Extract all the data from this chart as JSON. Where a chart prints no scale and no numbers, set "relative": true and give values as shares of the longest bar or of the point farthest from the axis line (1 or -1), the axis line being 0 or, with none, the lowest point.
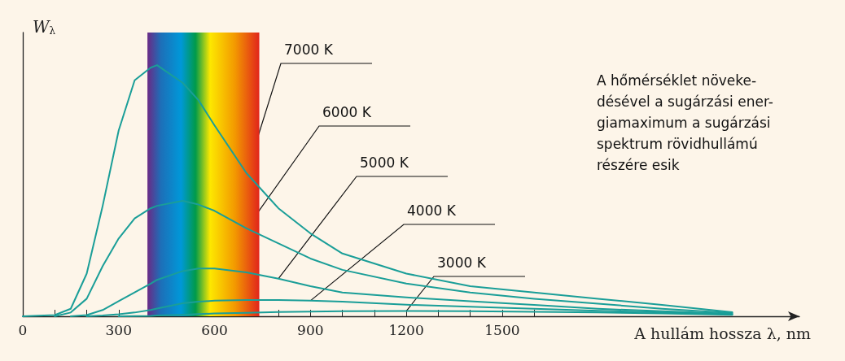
{
  "chart_data": {
    "type": "line",
    "relative": true,
    "xlabel": "A hullám hossza λ, nm",
    "ylabel": "W$_{λ}$",
    "x": [
      0,
      100,
      150,
      200,
      250,
      300,
      350,
      400,
      420,
      500,
      550,
      600,
      700,
      800,
      900,
      1000,
      1200,
      1400,
      1600,
      1800,
      2000,
      2220
    ],
    "xlim": [
      0,
      2430
    ],
    "xticks": [
      0,
      {
        "value": 100,
        "label": null
      },
      {
        "value": 200,
        "label": null
      },
      300,
      {
        "value": 400,
        "label": null
      },
      {
        "value": 500,
        "label": null
      },
      600,
      {
        "value": 700,
        "label": null
      },
      {
        "value": 800,
        "label": null
      },
      900,
      {
        "value": 1000,
        "label": null
      },
      {
        "value": 1100,
        "label": null
      },
      1200,
      {
        "value": 1300,
        "label": null
      },
      {
        "value": 1400,
        "label": null
      },
      1500,
      {
        "value": 1600,
        "label": null
      }
    ],
    "series": [
      {
        "name": "7000 K",
        "color": "#1a9e98",
        "values": [
          0,
          0.005,
          0.03,
          0.17,
          0.44,
          0.74,
          0.94,
          0.99,
          1,
          0.93,
          0.86,
          0.76,
          0.57,
          0.43,
          0.33,
          0.25,
          0.17,
          0.12,
          0.095,
          0.07,
          0.045,
          0.016
        ]
      },
      {
        "name": "6000 K",
        "color": "#1a9e98",
        "values": [
          null,
          0,
          0.015,
          0.07,
          0.2,
          0.31,
          0.39,
          0.43,
          0.44,
          0.46,
          0.445,
          0.42,
          0.35,
          0.29,
          0.23,
          0.185,
          0.13,
          0.095,
          0.07,
          0.05,
          0.03,
          0.013
        ]
      },
      {
        "name": "5000 K",
        "color": "#1a9e98",
        "values": [
          null,
          null,
          0,
          0.005,
          0.025,
          0.06,
          0.095,
          0.13,
          0.145,
          0.18,
          0.19,
          0.19,
          0.175,
          0.15,
          0.12,
          0.095,
          0.075,
          0.06,
          0.045,
          0.03,
          0.02,
          0.01
        ]
      },
      {
        "name": "4000 K",
        "color": "#1a9e98",
        "values": [
          null,
          null,
          null,
          0,
          0.003,
          0.008,
          0.015,
          0.025,
          0.031,
          0.052,
          0.058,
          0.062,
          0.065,
          0.065,
          0.062,
          0.058,
          0.046,
          0.038,
          0.03,
          0.022,
          0.015,
          0.008
        ]
      },
      {
        "name": "3000 K",
        "color": "#1a9e98",
        "values": [
          null,
          null,
          null,
          null,
          null,
          0,
          0.001,
          0.002,
          0.003,
          0.006,
          0.009,
          0.011,
          0.014,
          0.017,
          0.019,
          0.02,
          0.021,
          0.02,
          0.018,
          0.015,
          0.011,
          0.006
        ]
      }
    ],
    "bands": [
      {
        "axis": "x",
        "from": 390,
        "to": 740
      }
    ],
    "annotations": [
      "A hőmérséklet növeke-\ndésével a sugárzási ener-\ngiamaximum a sugárzási\nspektrum rövidhullámú\nrészére esik"
    ],
    "marker": "none",
    "line_style": "solid",
    "grid": false,
    "legend": false
  }
}
